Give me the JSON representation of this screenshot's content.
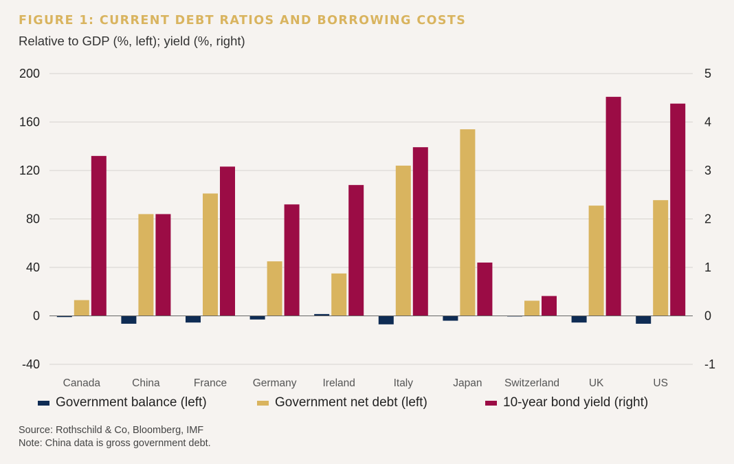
{
  "colors": {
    "balance": "#0f2c54",
    "net_debt": "#d9b45f",
    "yield": "#9b0c45",
    "grid": "#d7d3cf",
    "axis": "#666666"
  },
  "chart_data": {
    "type": "bar",
    "title": "FIGURE 1: CURRENT DEBT RATIOS AND BORROWING COSTS",
    "subtitle": "Relative to GDP (%, left); yield (%, right)",
    "categories": [
      "Canada",
      "China",
      "France",
      "Germany",
      "Ireland",
      "Italy",
      "Japan",
      "Switzerland",
      "UK",
      "US"
    ],
    "left_axis": {
      "min": -40,
      "max": 200,
      "ticks": [
        200,
        160,
        120,
        80,
        40,
        0,
        -40
      ]
    },
    "right_axis": {
      "min": -1,
      "max": 5,
      "ticks": [
        5,
        4,
        3,
        2,
        1,
        0,
        -1
      ]
    },
    "series": [
      {
        "name": "Government balance (left)",
        "axis": "left",
        "color_key": "balance",
        "values": [
          -1.0,
          -6.5,
          -5.5,
          -3.0,
          1.5,
          -7.0,
          -4.0,
          -0.5,
          -5.5,
          -6.5
        ]
      },
      {
        "name": "Government net debt (left)",
        "axis": "left",
        "color_key": "net_debt",
        "values": [
          13,
          84,
          101,
          45,
          35,
          124,
          154,
          12.5,
          91,
          95.5
        ]
      },
      {
        "name": "10-year bond yield (right)",
        "axis": "right",
        "color_key": "yield",
        "values": [
          3.3,
          2.1,
          3.08,
          2.3,
          2.7,
          3.48,
          1.1,
          0.41,
          4.52,
          4.38
        ]
      }
    ],
    "legend_position": "bottom"
  },
  "legend": [
    {
      "label": "Government balance (left)",
      "color_key": "balance"
    },
    {
      "label": "Government net debt (left)",
      "color_key": "net_debt"
    },
    {
      "label": "10-year bond yield (right)",
      "color_key": "yield"
    }
  ],
  "footer": {
    "source": "Source: Rothschild & Co, Bloomberg, IMF",
    "note": "Note: China data is gross government debt."
  }
}
